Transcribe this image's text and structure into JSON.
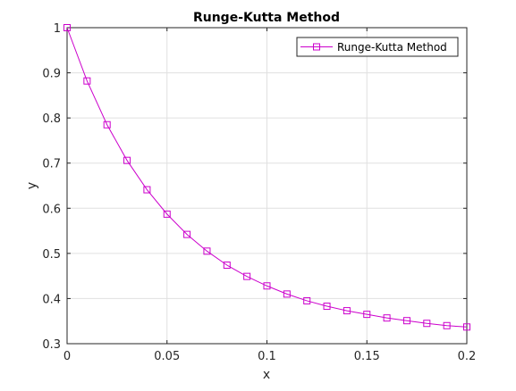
{
  "chart_data": {
    "type": "line",
    "title": "Runge-Kutta Method",
    "xlabel": "x",
    "ylabel": "y",
    "xlim": [
      0,
      0.2
    ],
    "ylim": [
      0.3,
      1
    ],
    "xticks": [
      0,
      0.05,
      0.1,
      0.15,
      0.2
    ],
    "xtick_labels": [
      "0",
      "0.05",
      "0.1",
      "0.15",
      "0.2"
    ],
    "yticks": [
      0.3,
      0.4,
      0.5,
      0.6,
      0.7,
      0.8,
      0.9,
      1
    ],
    "ytick_labels": [
      "0.3",
      "0.4",
      "0.5",
      "0.6",
      "0.7",
      "0.8",
      "0.9",
      "1"
    ],
    "grid": true,
    "legend_position": "top-right",
    "series": [
      {
        "name": "Runge-Kutta Method",
        "color": "#cc00cc",
        "marker": "square",
        "x": [
          0,
          0.01,
          0.02,
          0.03,
          0.04,
          0.05,
          0.06,
          0.07,
          0.08,
          0.09,
          0.1,
          0.11,
          0.12,
          0.13,
          0.14,
          0.15,
          0.16,
          0.17,
          0.18,
          0.19,
          0.2
        ],
        "y": [
          1.0,
          0.882,
          0.785,
          0.706,
          0.641,
          0.587,
          0.542,
          0.505,
          0.474,
          0.449,
          0.428,
          0.41,
          0.395,
          0.383,
          0.373,
          0.365,
          0.357,
          0.351,
          0.345,
          0.34,
          0.337
        ]
      }
    ]
  }
}
